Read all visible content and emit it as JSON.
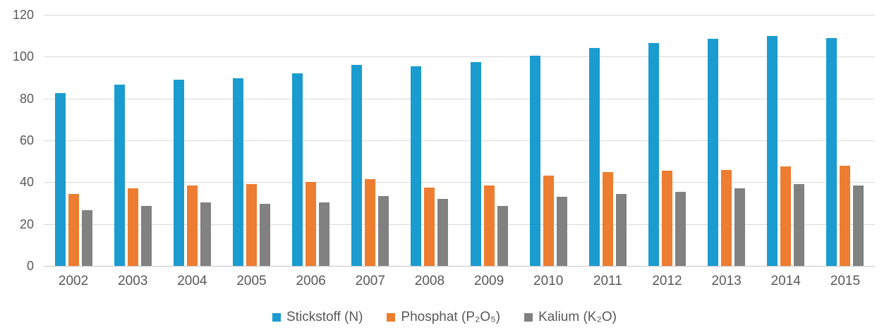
{
  "chart_data": {
    "type": "bar",
    "title": "",
    "xlabel": "",
    "ylabel": "",
    "ylim": [
      0,
      120
    ],
    "y_ticks": [
      "120",
      "100",
      "80",
      "60",
      "40",
      "20",
      "0"
    ],
    "grid": true,
    "legend_position": "bottom",
    "categories": [
      "2002",
      "2003",
      "2004",
      "2005",
      "2006",
      "2007",
      "2008",
      "2009",
      "2010",
      "2011",
      "2012",
      "2013",
      "2014",
      "2015"
    ],
    "series": [
      {
        "id": "stickstoff",
        "name": "Stickstoff (N)",
        "color": "#1b9cd0",
        "values": [
          82.5,
          86.5,
          89,
          89.5,
          92,
          96,
          95.5,
          97.5,
          100.5,
          104,
          106.5,
          108.5,
          110,
          109
        ]
      },
      {
        "id": "phosphat",
        "name": "Phosphat (P₂O₅)",
        "color": "#ed7d31",
        "values": [
          34.5,
          37,
          38.5,
          39,
          40,
          41.5,
          37.5,
          38.5,
          43,
          45,
          45.5,
          46,
          47.5,
          48
        ]
      },
      {
        "id": "kalium",
        "name": "Kalium (K₂O)",
        "color": "#818181",
        "values": [
          26.5,
          28.5,
          30.5,
          29.5,
          30.5,
          33.5,
          32,
          28.5,
          33,
          34.5,
          35.5,
          37,
          39,
          38.5
        ]
      }
    ],
    "colors": {
      "gridline": "#d9d9d9",
      "baseline": "#c6c6c6",
      "tick_text": "#595959"
    }
  }
}
